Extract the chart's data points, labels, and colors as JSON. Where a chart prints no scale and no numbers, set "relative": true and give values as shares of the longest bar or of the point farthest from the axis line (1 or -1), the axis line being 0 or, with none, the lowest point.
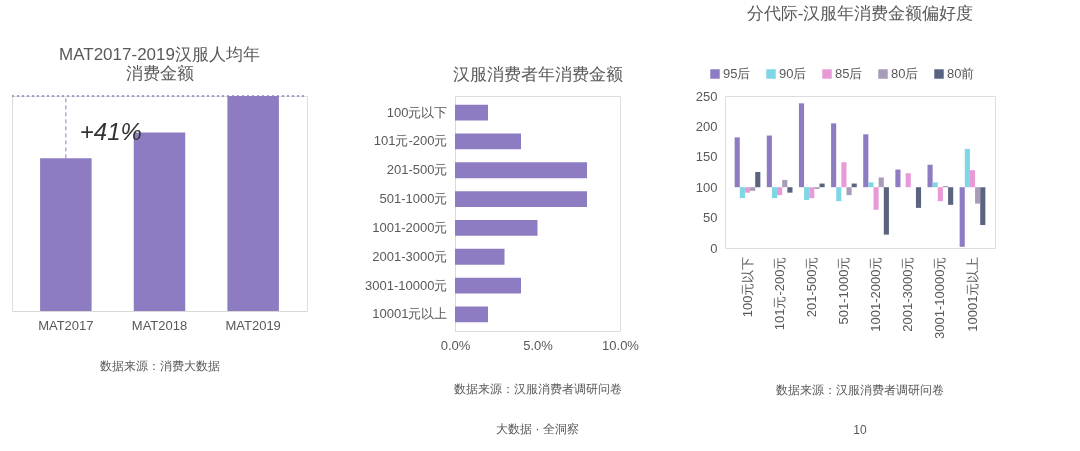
{
  "chart_data": [
    {
      "type": "bar",
      "title": "MAT2017-2019汉服人均年消费金额",
      "categories": [
        "MAT2017",
        "MAT2018",
        "MAT2019"
      ],
      "values": [
        0.71,
        0.83,
        1
      ],
      "color": "#8e7cc3",
      "relative": true,
      "grid": false,
      "ref_lines": [
        {
          "axis": "y",
          "value": 1,
          "label": null,
          "color": "#8e7cc3",
          "line_style": "dotted"
        }
      ],
      "annotations": [
        "+41%",
        "数据来源：消费大数据"
      ]
    },
    {
      "type": "bar",
      "orientation": "horizontal",
      "title": "汉服消费者年消费金额",
      "categories": [
        "100元以下",
        "101元-200元",
        "201-500元",
        "501-1000元",
        "1001-2000元",
        "2001-3000元",
        "3001-10000元",
        "10001元以上"
      ],
      "values": [
        2.0,
        4.0,
        8.0,
        8.0,
        5.0,
        3.0,
        4.0,
        2.0
      ],
      "color": "#8e7cc3",
      "xlim": [
        0,
        10
      ],
      "xticks": [
        {
          "value": 0,
          "label": "0.0%"
        },
        {
          "value": 5,
          "label": "5.0%"
        },
        {
          "value": 10,
          "label": "10.0%"
        }
      ],
      "grid": false,
      "annotations": [
        "数据来源：汉服消费者调研问卷",
        "大数据 · 全洞察"
      ]
    },
    {
      "type": "bar",
      "title": "分代际-汉服年消费金额偏好度",
      "categories": [
        "100元以下",
        "101元-200元",
        "201-500元",
        "501-1000元",
        "1001-2000元",
        "2001-3000元",
        "3001-10000元",
        "10001元以上"
      ],
      "ylim": [
        0,
        250
      ],
      "yticks": [
        0,
        50,
        100,
        150,
        200,
        250
      ],
      "grid": false,
      "legend": "top",
      "series": [
        {
          "name": "95后",
          "color": "#8e7cc3",
          "base": [
            100,
            100,
            100,
            100,
            100,
            100,
            100,
            100
          ],
          "values": [
            82,
            85,
            138,
            105,
            87,
            29,
            37,
            -98
          ]
        },
        {
          "name": "90后",
          "color": "#7fd7e6",
          "base": [
            100,
            100,
            100,
            100,
            100,
            null,
            100,
            100
          ],
          "values": [
            -18,
            -18,
            -21,
            -23,
            8,
            null,
            8,
            63
          ]
        },
        {
          "name": "85后",
          "color": "#e79ad6",
          "base": [
            100,
            100,
            100,
            100,
            100,
            100,
            100,
            100
          ],
          "values": [
            -9,
            -13,
            -18,
            41,
            -37,
            23,
            -23,
            28
          ]
        },
        {
          "name": "80后",
          "color": "#a99cb8",
          "base": [
            100,
            100,
            100,
            100,
            100,
            null,
            100,
            100
          ],
          "values": [
            -6,
            12,
            -3,
            -13,
            16,
            null,
            2,
            -27
          ]
        },
        {
          "name": "80前",
          "color": "#5a6480",
          "base": [
            100,
            100,
            100,
            100,
            100,
            100,
            100,
            100
          ],
          "values": [
            25,
            -9,
            6,
            6,
            -78,
            -34,
            -29,
            -62
          ]
        }
      ],
      "annotations": [
        "数据来源：汉服消费者调研问卷",
        "10"
      ]
    }
  ]
}
